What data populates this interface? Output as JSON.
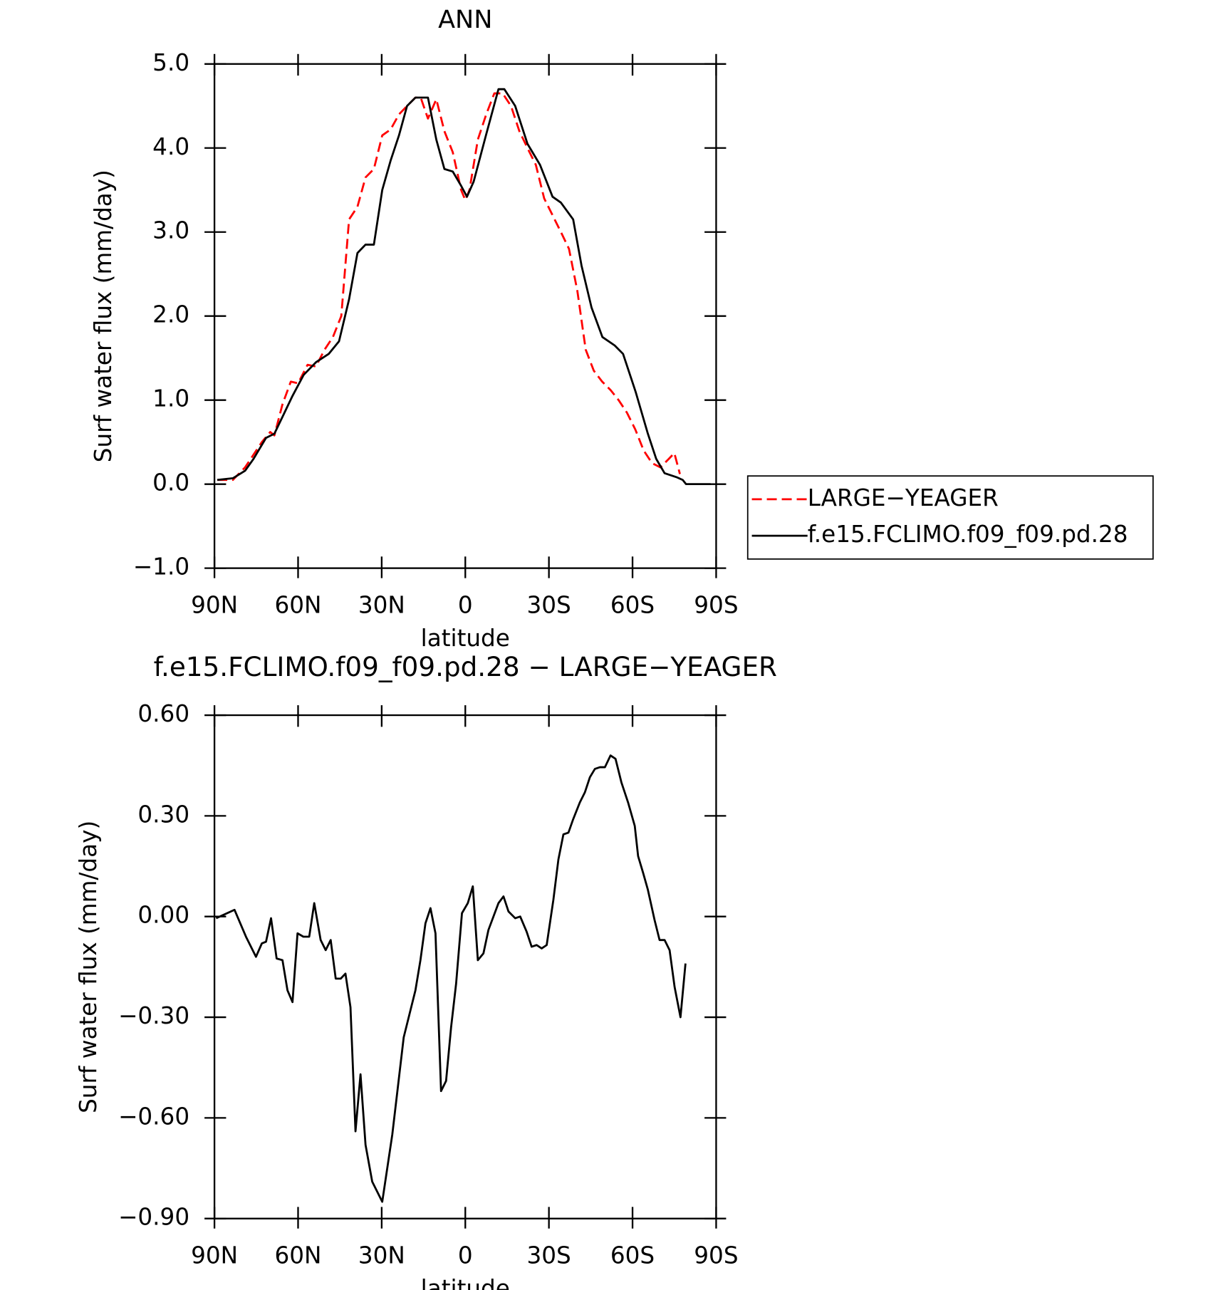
{
  "chart_data": [
    {
      "type": "line",
      "title": "ANN",
      "xlabel": "latitude",
      "ylabel": "Surf water flux (mm/day)",
      "xlim": [
        90,
        -90
      ],
      "xticks": [
        {
          "value": 90,
          "label": "90N"
        },
        {
          "value": 60,
          "label": "60N"
        },
        {
          "value": 30,
          "label": "30N"
        },
        0,
        {
          "value": -30,
          "label": "30S"
        },
        {
          "value": -60,
          "label": "60S"
        },
        {
          "value": -90,
          "label": "90S"
        }
      ],
      "ylim": [
        -1,
        5
      ],
      "yticks": [
        {
          "value": 5,
          "label": "5.0"
        },
        {
          "value": 4,
          "label": "4.0"
        },
        {
          "value": 3,
          "label": "3.0"
        },
        {
          "value": 2,
          "label": "2.0"
        },
        {
          "value": 1,
          "label": "1.0"
        },
        {
          "value": 0,
          "label": "0.0"
        },
        {
          "value": -1,
          "label": "−1.0"
        }
      ],
      "legend": "right",
      "series": [
        {
          "name": "LARGE−YEAGER",
          "color": "#ff0000",
          "linestyle": "dashed",
          "x": [
            89,
            83.4,
            79,
            76,
            73,
            70,
            68.5,
            65.6,
            62.6,
            60,
            56.6,
            53.6,
            50.5,
            47.5,
            44.5,
            41.7,
            38.7,
            35.8,
            32.8,
            29.8,
            26.8,
            23.8,
            20.9,
            17.9,
            16,
            13.4,
            10.4,
            7.5,
            4.5,
            1.5,
            0,
            -1.5,
            -4.5,
            -7.5,
            -10.4,
            -13.4,
            -16.4,
            -19.4,
            -22.3,
            -25.3,
            -28.3,
            -31.3,
            -34.3,
            -37.2,
            -40.2,
            -43.2,
            -46.1,
            -49.1,
            -52.1,
            -55,
            -58,
            -61,
            -64,
            -67,
            -70,
            -73,
            -75,
            -77
          ],
          "values": [
            0.05,
            0.05,
            0.2,
            0.35,
            0.5,
            0.62,
            0.58,
            0.95,
            1.22,
            1.2,
            1.42,
            1.4,
            1.6,
            1.75,
            2.0,
            3.15,
            3.3,
            3.65,
            3.75,
            4.15,
            4.22,
            4.4,
            4.5,
            4.6,
            4.6,
            4.35,
            4.58,
            4.2,
            3.95,
            3.5,
            3.38,
            3.5,
            4.1,
            4.4,
            4.65,
            4.65,
            4.5,
            4.2,
            4.0,
            3.8,
            3.4,
            3.2,
            3.0,
            2.8,
            2.3,
            1.6,
            1.35,
            1.22,
            1.12,
            1.0,
            0.85,
            0.65,
            0.4,
            0.25,
            0.2,
            0.3,
            0.37,
            0.12
          ]
        },
        {
          "name": "f.e15.FCLIMO.f09_f09.pd.28",
          "color": "#000000",
          "linestyle": "solid",
          "x": [
            89,
            83.4,
            79,
            76,
            71.5,
            68.5,
            65.6,
            62,
            58,
            53.6,
            49,
            45.3,
            41.7,
            38.7,
            35.8,
            32.8,
            29.8,
            26.8,
            23.8,
            20.9,
            17.9,
            13.4,
            10.4,
            7.5,
            4.5,
            1.5,
            -0.6,
            -3,
            -7.4,
            -11.9,
            -14,
            -17.9,
            -22.3,
            -26.8,
            -31.3,
            -34.3,
            -38.7,
            -41.7,
            -45.3,
            -49.2,
            -53.6,
            -56.6,
            -61.1,
            -65.5,
            -68.5,
            -71.5,
            -76,
            -78,
            -79.2,
            -88
          ],
          "values": [
            0.05,
            0.07,
            0.16,
            0.3,
            0.55,
            0.6,
            0.8,
            1.05,
            1.3,
            1.45,
            1.55,
            1.7,
            2.2,
            2.75,
            2.85,
            2.85,
            3.5,
            3.85,
            4.15,
            4.5,
            4.6,
            4.6,
            4.1,
            3.75,
            3.72,
            3.55,
            3.42,
            3.6,
            4.15,
            4.7,
            4.7,
            4.5,
            4.05,
            3.8,
            3.42,
            3.35,
            3.15,
            2.6,
            2.1,
            1.75,
            1.65,
            1.55,
            1.1,
            0.6,
            0.3,
            0.13,
            0.08,
            0.05,
            0,
            0
          ]
        }
      ]
    },
    {
      "type": "line",
      "title": "f.e15.FCLIMO.f09_f09.pd.28 − LARGE−YEAGER",
      "xlabel": "latitude",
      "ylabel": "Surf water flux (mm/day)",
      "xlim": [
        90,
        -90
      ],
      "xticks": [
        {
          "value": 90,
          "label": "90N"
        },
        {
          "value": 60,
          "label": "60N"
        },
        {
          "value": 30,
          "label": "30N"
        },
        0,
        {
          "value": -30,
          "label": "30S"
        },
        {
          "value": -60,
          "label": "60S"
        },
        {
          "value": -90,
          "label": "90S"
        }
      ],
      "ylim": [
        -0.9,
        0.6
      ],
      "yticks": [
        {
          "value": 0.6,
          "label": "0.60"
        },
        {
          "value": 0.3,
          "label": "0.30"
        },
        {
          "value": 0,
          "label": "0.00"
        },
        {
          "value": -0.3,
          "label": "−0.30"
        },
        {
          "value": -0.6,
          "label": "−0.60"
        },
        {
          "value": -0.9,
          "label": "−0.90"
        }
      ],
      "series": [
        {
          "color": "#000000",
          "linestyle": "solid",
          "x": [
            89.4,
            82.8,
            78.7,
            77.5,
            75.1,
            73,
            71.5,
            69.7,
            67.7,
            65.6,
            63.8,
            62,
            60.2,
            58.1,
            56,
            54.2,
            51.9,
            50.1,
            48.3,
            46.5,
            44.7,
            43,
            41.2,
            39.4,
            37.6,
            35.8,
            33.4,
            29.8,
            26.2,
            22.1,
            20.3,
            17.9,
            16.1,
            14.3,
            12.5,
            10.7,
            8.7,
            6.9,
            5.1,
            3.3,
            1.2,
            -0.9,
            -2.7,
            -4.5,
            -6.5,
            -8.3,
            -11.9,
            -13.7,
            -15.5,
            -17.9,
            -19.7,
            -22,
            -23.8,
            -25.6,
            -27.4,
            -29.2,
            -31.6,
            -33.4,
            -35.2,
            -37,
            -38.7,
            -41.1,
            -42.9,
            -44.7,
            -46.5,
            -48.3,
            -50.1,
            -52.1,
            -53.9,
            -56,
            -58.4,
            -60.8,
            -62,
            -63.8,
            -65.5,
            -67.9,
            -69.7,
            -71.5,
            -73.3,
            -75.1,
            -77.2,
            -79
          ],
          "values": [
            -0.005,
            0.02,
            -0.06,
            -0.08,
            -0.12,
            -0.08,
            -0.075,
            -0.005,
            -0.125,
            -0.13,
            -0.22,
            -0.255,
            -0.05,
            -0.06,
            -0.06,
            0.04,
            -0.07,
            -0.1,
            -0.07,
            -0.185,
            -0.185,
            -0.17,
            -0.27,
            -0.64,
            -0.47,
            -0.68,
            -0.79,
            -0.85,
            -0.65,
            -0.36,
            -0.3,
            -0.22,
            -0.13,
            -0.02,
            0.025,
            -0.05,
            -0.52,
            -0.49,
            -0.33,
            -0.2,
            0.01,
            0.04,
            0.09,
            -0.13,
            -0.11,
            -0.04,
            0.04,
            0.06,
            0.015,
            -0.005,
            0,
            -0.045,
            -0.09,
            -0.085,
            -0.095,
            -0.085,
            0.05,
            0.17,
            0.245,
            0.25,
            0.29,
            0.34,
            0.37,
            0.415,
            0.44,
            0.445,
            0.445,
            0.48,
            0.47,
            0.4,
            0.34,
            0.27,
            0.18,
            0.13,
            0.08,
            -0.01,
            -0.07,
            -0.07,
            -0.1,
            -0.21,
            -0.3,
            -0.14
          ]
        }
      ]
    }
  ]
}
